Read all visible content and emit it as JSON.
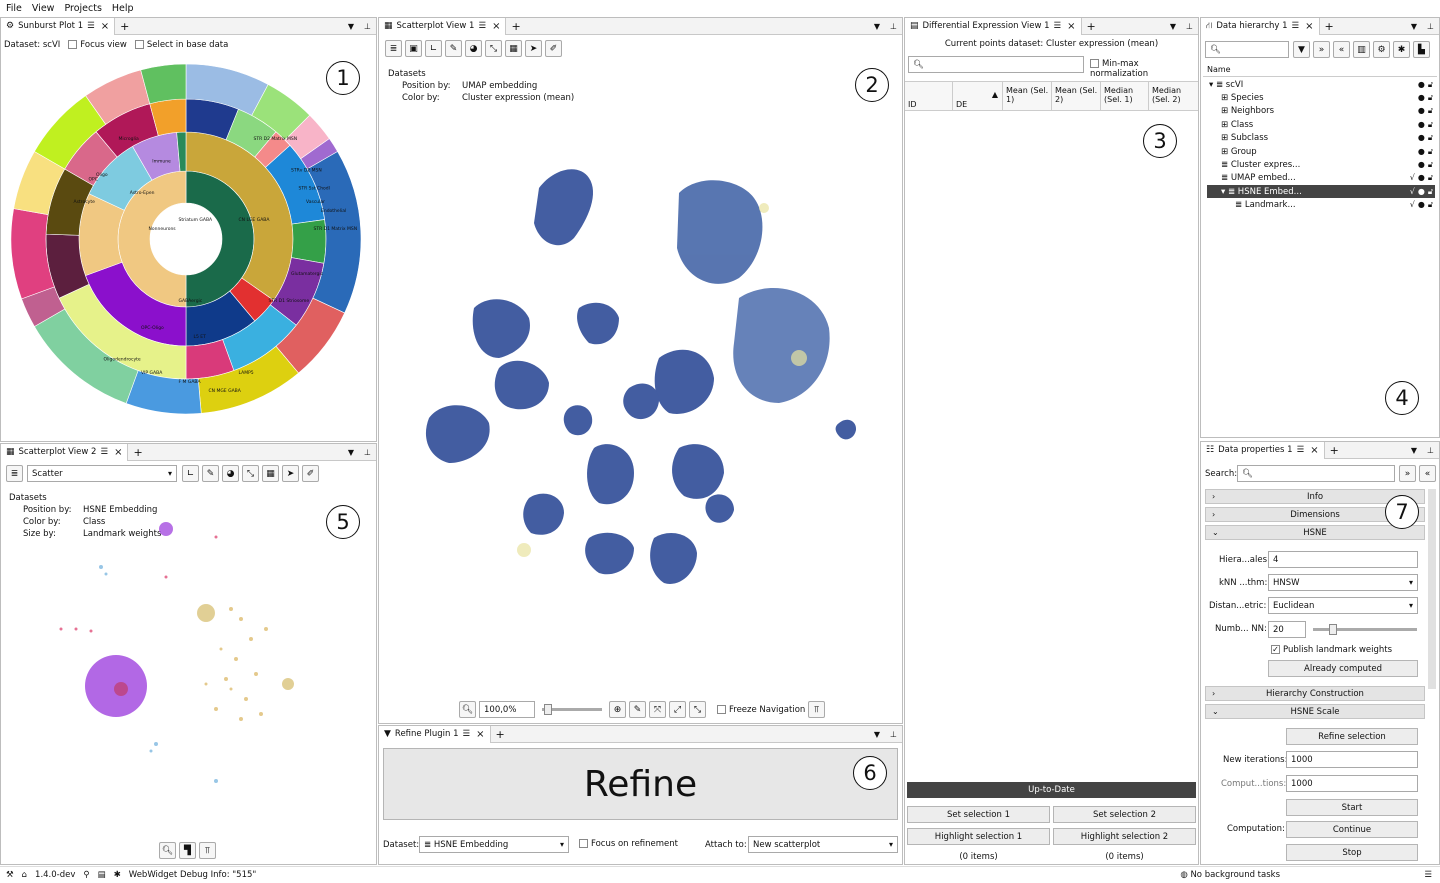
{
  "menu": [
    "File",
    "View",
    "Projects",
    "Help"
  ],
  "panels": {
    "sunburst": {
      "tab": "Sunburst Plot 1",
      "dataset_label": "Dataset: scVI",
      "focus_view": "Focus view",
      "select_base": "Select in base data",
      "badge": "1",
      "segment_labels": [
        "Glutamatergic",
        "GABAergic",
        "Nonneurons",
        "Astro-Epen",
        "Immune",
        "Oligo",
        "OPC",
        "Astrocyte",
        "Microglia",
        "STR D2 Matrix MSN",
        "STR D1 Matrix MSN",
        "STRv D2 MSN",
        "STR Sst Chodl",
        "Vascular",
        "Endothelial",
        "CN LGE GABA",
        "Striatum GABA",
        "STR D1 Striosome",
        "OPC-Oligo",
        "L5 ET",
        "Oligodendrocyte",
        "VIP GABA",
        "F M GABA",
        "CN MGE GABA",
        "LAMP5"
      ]
    },
    "scatter1": {
      "tab": "Scatterplot View 1",
      "datasets_label": "Datasets",
      "position_key": "Position by:",
      "position_val": "UMAP embedding",
      "color_key": "Color by:",
      "color_val": "Cluster expression (mean)",
      "badge": "2",
      "zoom": "100,0%",
      "freeze": "Freeze Navigation"
    },
    "diffexp": {
      "tab": "Differential Expression View 1",
      "current_dataset": "Current points dataset: Cluster expression (mean)",
      "minmax": "Min-max normalization",
      "columns": [
        "ID",
        "DE",
        "Mean (Sel. 1)",
        "Mean (Sel. 2)",
        "Median (Sel. 1)",
        "Median (Sel. 2)"
      ],
      "badge": "3",
      "status": "Up-to-Date",
      "set_sel1": "Set selection 1",
      "set_sel2": "Set selection 2",
      "hl_sel1": "Highlight selection 1",
      "hl_sel2": "Highlight selection 2",
      "items1": "(0 items)",
      "items2": "(0 items)"
    },
    "hierarchy": {
      "tab": "Data hierarchy 1",
      "name_col": "Name",
      "badge": "4",
      "items": [
        "scVI",
        "Species",
        "Neighbors",
        "Class",
        "Subclass",
        "Group",
        "Cluster expres...",
        "UMAP embed...",
        "HSNE Embed...",
        "Landmark..."
      ]
    },
    "scatter2": {
      "tab": "Scatterplot View 2",
      "render_mode": "Scatter",
      "datasets_label": "Datasets",
      "position_key": "Position by:",
      "position_val": "HSNE Embedding",
      "color_key": "Color by:",
      "color_val": "Class",
      "size_key": "Size by:",
      "size_val": "Landmark weights",
      "badge": "5"
    },
    "refine": {
      "tab": "Refine Plugin 1",
      "button": "Refine",
      "badge": "6",
      "dataset_label": "Dataset:",
      "dataset_val": "HSNE Embedding",
      "focus": "Focus on refinement",
      "attach_label": "Attach to:",
      "attach_val": "New scatterplot"
    },
    "props": {
      "tab": "Data properties 1",
      "search_label": "Search:",
      "badge": "7",
      "sections": [
        "Info",
        "Dimensions",
        "HSNE",
        "Hierarchy Construction",
        "HSNE Scale"
      ],
      "hier_scales_label": "Hiera...ales:",
      "hier_scales_val": "4",
      "knn_label": "kNN ...thm:",
      "knn_val": "HNSW",
      "dist_label": "Distan...etric:",
      "dist_val": "Euclidean",
      "numnn_label": "Numb... NN:",
      "numnn_val": "20",
      "publish": "Publish landmark weights",
      "already": "Already computed",
      "refine_sel": "Refine selection",
      "new_iter_label": "New iterations:",
      "new_iter_val": "1000",
      "comput_label": "Comput...tions:",
      "comput_val": "1000",
      "start": "Start",
      "computation_label": "Computation:",
      "continue": "Continue",
      "stop": "Stop"
    }
  },
  "status": {
    "version": "1.4.0-dev",
    "debug": "WebWidget Debug Info: \"515\"",
    "tasks": "No background tasks"
  }
}
